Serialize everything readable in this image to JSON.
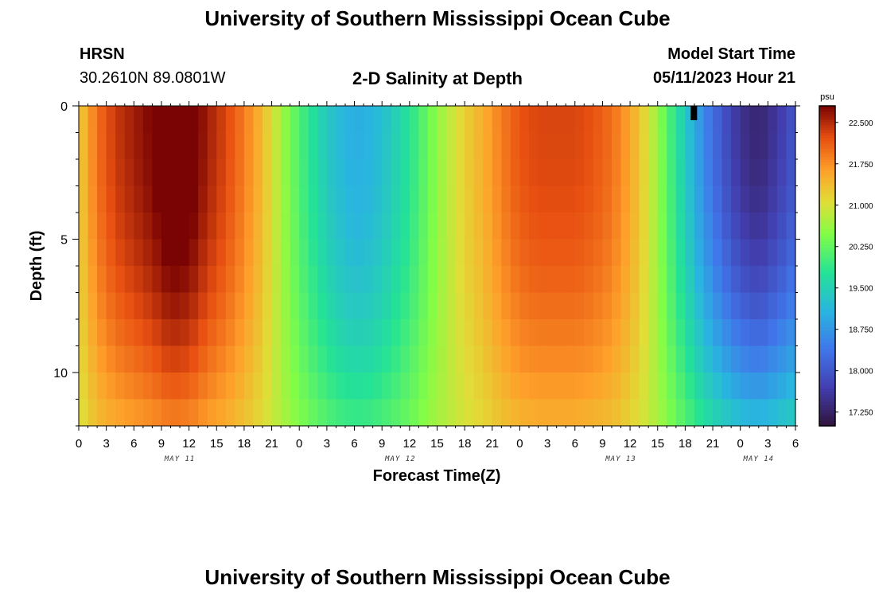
{
  "header": {
    "title": "University of Southern Mississippi Ocean Cube",
    "station": "HRSN",
    "coordinates": "30.2610N  89.0801W",
    "subtitle": "2-D Salinity at Depth",
    "model_start_label": "Model Start Time",
    "model_start_value": "05/11/2023 Hour 21"
  },
  "footer": {
    "title": "University of Southern Mississippi Ocean Cube"
  },
  "chart_data": {
    "type": "heatmap",
    "title": "2-D Salinity at Depth",
    "xlabel": "Forecast Time(Z)",
    "ylabel": "Depth (ft)",
    "x_tick_labels": [
      "0",
      "3",
      "6",
      "9",
      "12",
      "15",
      "18",
      "21",
      "0",
      "3",
      "6",
      "9",
      "12",
      "15",
      "18",
      "21",
      "0",
      "3",
      "6",
      "9",
      "12",
      "15",
      "18",
      "21",
      "0",
      "3",
      "6"
    ],
    "date_labels": [
      {
        "label": "MAY 11",
        "hour": 11
      },
      {
        "label": "MAY 12",
        "hour": 35
      },
      {
        "label": "MAY 13",
        "hour": 59
      },
      {
        "label": "MAY 14",
        "hour": 74
      }
    ],
    "x_range_hours": [
      0,
      78
    ],
    "y_ticks": [
      0,
      5,
      10
    ],
    "y_range_ft": [
      0,
      12
    ],
    "colorbar": {
      "unit": "psu",
      "range": [
        17.0,
        22.8
      ],
      "ticks": [
        "22.500",
        "21.750",
        "21.000",
        "20.250",
        "19.500",
        "18.750",
        "18.000",
        "17.250"
      ]
    },
    "depth_levels_ft": [
      0.5,
      1.5,
      2.5,
      3.5,
      4.5,
      5.5,
      6.5,
      7.5,
      8.5,
      9.5,
      10.5,
      11.5
    ],
    "surface_salinity_by_hour": [
      [
        0,
        21.2
      ],
      [
        2,
        22.0
      ],
      [
        4,
        22.4
      ],
      [
        6,
        22.6
      ],
      [
        8,
        22.8
      ],
      [
        10,
        23.1
      ],
      [
        12,
        23.0
      ],
      [
        14,
        22.6
      ],
      [
        16,
        22.3
      ],
      [
        18,
        21.9
      ],
      [
        20,
        21.4
      ],
      [
        22,
        20.7
      ],
      [
        24,
        20.1
      ],
      [
        26,
        19.6
      ],
      [
        28,
        19.2
      ],
      [
        30,
        19.0
      ],
      [
        32,
        19.1
      ],
      [
        34,
        19.4
      ],
      [
        36,
        19.8
      ],
      [
        38,
        20.3
      ],
      [
        40,
        20.8
      ],
      [
        42,
        21.2
      ],
      [
        44,
        21.5
      ],
      [
        46,
        21.9
      ],
      [
        48,
        22.2
      ],
      [
        50,
        22.3
      ],
      [
        52,
        22.3
      ],
      [
        54,
        22.3
      ],
      [
        56,
        22.2
      ],
      [
        58,
        22.0
      ],
      [
        60,
        21.6
      ],
      [
        62,
        21.0
      ],
      [
        64,
        20.2
      ],
      [
        66,
        19.4
      ],
      [
        68,
        18.6
      ],
      [
        70,
        18.0
      ],
      [
        72,
        17.5
      ],
      [
        74,
        17.3
      ],
      [
        76,
        17.6
      ],
      [
        78,
        18.0
      ]
    ]
  }
}
